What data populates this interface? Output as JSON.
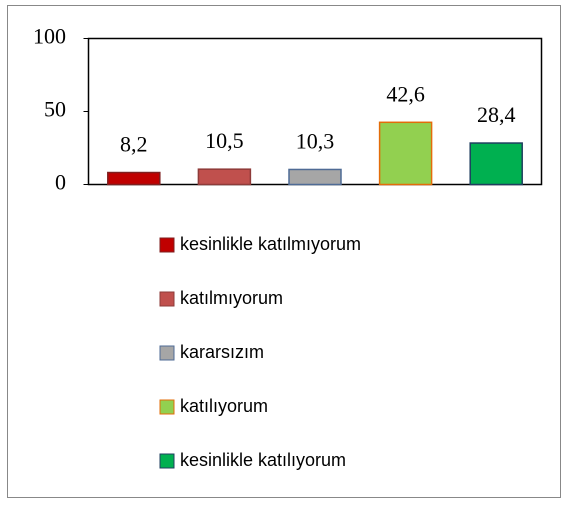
{
  "chart_data": {
    "type": "bar",
    "categories": [
      "kesinlikle katılmıyorum",
      "katılmıyorum",
      "kararsızım",
      "katılıyorum",
      "kesinlikle katılıyorum"
    ],
    "values": [
      8.2,
      10.5,
      10.3,
      42.6,
      28.4
    ],
    "value_labels": [
      "8,2",
      "10,5",
      "10,3",
      "42,6",
      "28,4"
    ],
    "colors": [
      "#c00000",
      "#c0504d",
      "#a6a6a6",
      "#92d050",
      "#00b050"
    ],
    "edgecolors": [
      "#7f1f1f",
      "#8e3b39",
      "#4f6b95",
      "#e36c09",
      "#1f3f5f"
    ],
    "ylim": [
      0,
      100
    ],
    "yticks": [
      0,
      50,
      100
    ],
    "grid": false,
    "legend": "bottom"
  }
}
